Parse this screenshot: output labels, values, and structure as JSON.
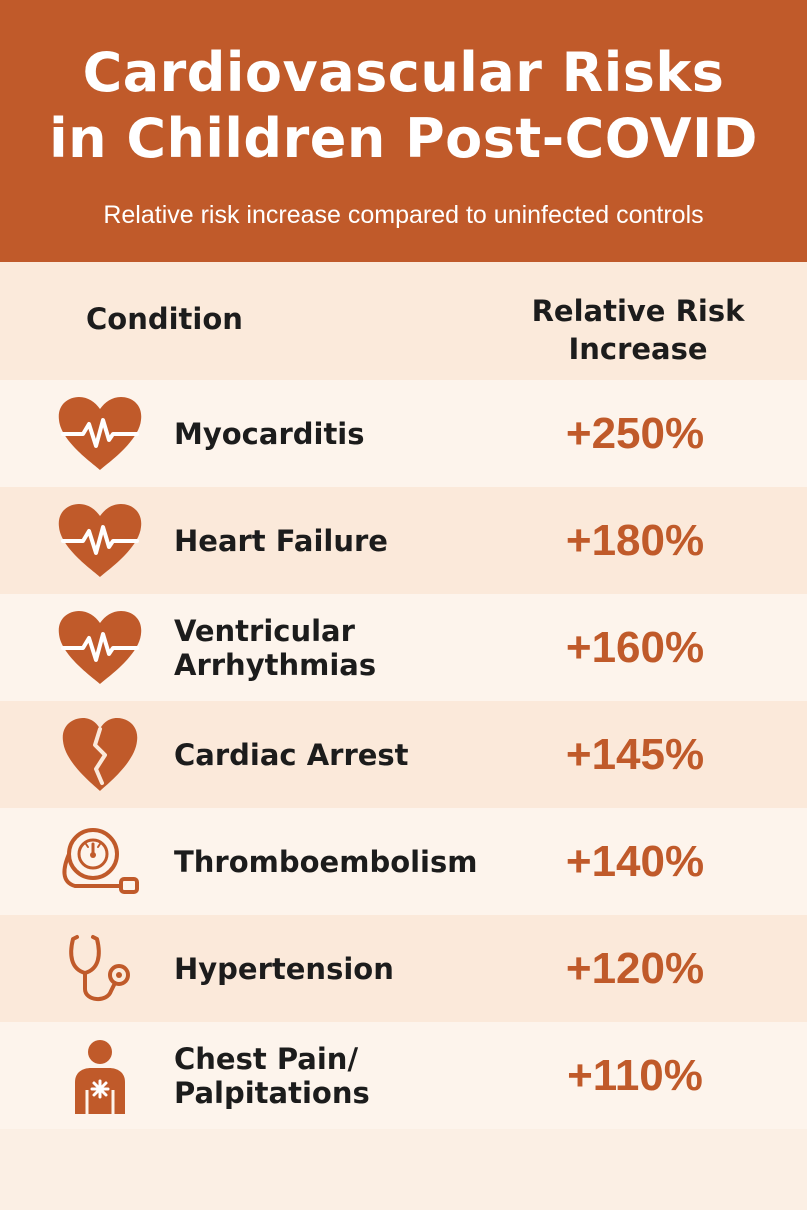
{
  "header": {
    "title_line1": "Cardiovascular Risks",
    "title_line2": "in Children Post-COVID",
    "subtitle": "Relative risk increase compared to uninfected controls"
  },
  "columns": {
    "condition": "Condition",
    "risk_line1": "Relative Risk",
    "risk_line2": "Increase"
  },
  "colors": {
    "accent": "#c05a2a",
    "background": "#fbefe4"
  },
  "rows": [
    {
      "icon": "heart-pulse-icon",
      "condition_line1": "Myocarditis",
      "condition_line2": "",
      "value": "+250%"
    },
    {
      "icon": "heart-pulse-icon",
      "condition_line1": "Heart Failure",
      "condition_line2": "",
      "value": "+180%"
    },
    {
      "icon": "heart-pulse-icon",
      "condition_line1": "Ventricular",
      "condition_line2": "Arrhythmias",
      "value": "+160%"
    },
    {
      "icon": "broken-heart-icon",
      "condition_line1": "Cardiac Arrest",
      "condition_line2": "",
      "value": "+145%"
    },
    {
      "icon": "blood-pressure-cuff-icon",
      "condition_line1": "Thromboembolism",
      "condition_line2": "",
      "value": "+140%"
    },
    {
      "icon": "stethoscope-icon",
      "condition_line1": "Hypertension",
      "condition_line2": "",
      "value": "+120%"
    },
    {
      "icon": "chest-pain-person-icon",
      "condition_line1": "Chest Pain/",
      "condition_line2": "Palpitations",
      "value": "+110%"
    }
  ]
}
